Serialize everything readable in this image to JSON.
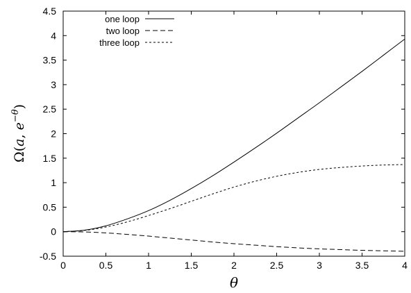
{
  "chart_data": {
    "type": "line",
    "title": "",
    "xlabel": "θ",
    "ylabel_parts": {
      "omega": "Ω",
      "open": "(",
      "a": "a",
      "comma": ", ",
      "e": "e",
      "exponent": "−θ",
      "close": ")"
    },
    "xlim": [
      0,
      4
    ],
    "ylim": [
      -0.5,
      4.5
    ],
    "x_ticks": [
      0,
      0.5,
      1,
      1.5,
      2,
      2.5,
      3,
      3.5,
      4
    ],
    "x_tick_labels": [
      "0",
      "0.5",
      "1",
      "1.5",
      "2",
      "2.5",
      "3",
      "3.5",
      "4"
    ],
    "y_ticks": [
      -0.5,
      0,
      0.5,
      1,
      1.5,
      2,
      2.5,
      3,
      3.5,
      4,
      4.5
    ],
    "y_tick_labels": [
      "-0.5",
      "0",
      "0.5",
      "1",
      "1.5",
      "2",
      "2.5",
      "3",
      "3.5",
      "4",
      "4.5"
    ],
    "grid": false,
    "legend_position": "top-left",
    "x": [
      0,
      0.25,
      0.5,
      0.75,
      1,
      1.25,
      1.5,
      1.75,
      2,
      2.25,
      2.5,
      2.75,
      3,
      3.25,
      3.5,
      3.75,
      4
    ],
    "series": [
      {
        "name": "one loop",
        "style": "solid",
        "values": [
          0,
          0.031,
          0.12,
          0.26,
          0.43,
          0.64,
          0.88,
          1.14,
          1.42,
          1.71,
          2.01,
          2.32,
          2.63,
          2.95,
          3.27,
          3.6,
          3.93
        ]
      },
      {
        "name": "two loop",
        "style": "dashed",
        "values": [
          0,
          -0.005,
          -0.025,
          -0.055,
          -0.09,
          -0.13,
          -0.17,
          -0.21,
          -0.245,
          -0.275,
          -0.305,
          -0.33,
          -0.35,
          -0.365,
          -0.38,
          -0.39,
          -0.4
        ]
      },
      {
        "name": "three loop",
        "style": "dotted",
        "values": [
          0,
          0.026,
          0.095,
          0.2,
          0.33,
          0.47,
          0.62,
          0.77,
          0.91,
          1.03,
          1.13,
          1.21,
          1.27,
          1.31,
          1.34,
          1.36,
          1.37
        ]
      }
    ]
  }
}
